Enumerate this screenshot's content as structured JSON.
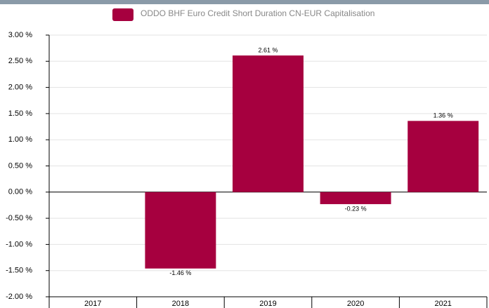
{
  "chart_data": {
    "type": "bar",
    "legend": "ODDO BHF Euro Credit Short Duration CN-EUR Capitalisation",
    "categories": [
      "2017",
      "2018",
      "2019",
      "2020",
      "2021"
    ],
    "values": [
      null,
      -1.46,
      2.61,
      -0.23,
      1.36
    ],
    "value_labels": [
      null,
      "-1.46 %",
      "2.61 %",
      "-0.23 %",
      "1.36 %"
    ],
    "color": "#a6003f",
    "ylim": [
      -2,
      3
    ],
    "yticks": [
      {
        "value": -2,
        "label": "-2.00 %"
      },
      {
        "value": -1.5,
        "label": "-1.50 %"
      },
      {
        "value": -1,
        "label": "-1.00 %"
      },
      {
        "value": -0.5,
        "label": "-0.50 %"
      },
      {
        "value": 0,
        "label": "0.00 %"
      },
      {
        "value": 0.5,
        "label": "0.50 %"
      },
      {
        "value": 1,
        "label": "1.00 %"
      },
      {
        "value": 1.5,
        "label": "1.50 %"
      },
      {
        "value": 2,
        "label": "2.00 %"
      },
      {
        "value": 2.5,
        "label": "2.50 %"
      },
      {
        "value": 3,
        "label": "3.00 %"
      }
    ],
    "grid": true
  }
}
